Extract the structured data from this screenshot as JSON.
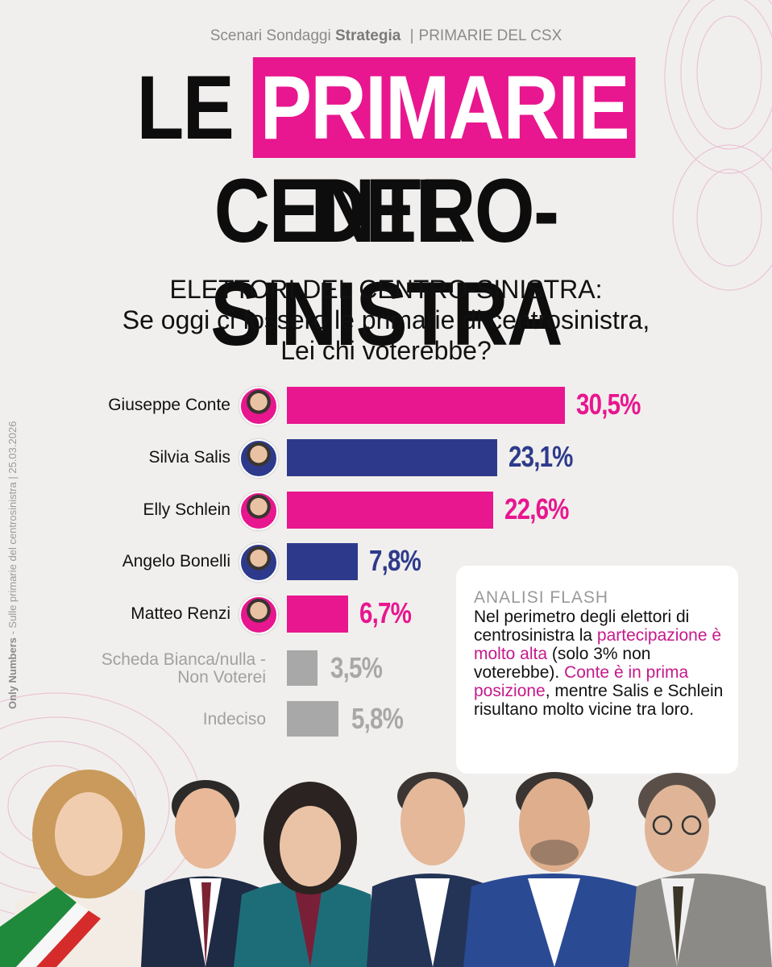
{
  "header": {
    "brand_plain": "Scenari Sondaggi",
    "brand_bold": "Strategia",
    "separator": "|",
    "topic": "PRIMARIE DEL CSX"
  },
  "title": {
    "line1_pre": "LE",
    "line1_highlight": "PRIMARIE",
    "line1_post": "DEL",
    "line2": "CENTRO-SINISTRA"
  },
  "subtitle": {
    "line1": "ELETTORI DEL CENTRO-SINISTRA:",
    "line2": "Se oggi ci fossero le primarie di centrosinistra,",
    "line3": "Lei chi voterebbe?"
  },
  "side_note": {
    "bold": "Only Numbers",
    "rest": " - Sulle primarie del centrosinistra | 25.03.2026"
  },
  "chart_data": {
    "type": "bar",
    "orientation": "horizontal",
    "categories": [
      "Giuseppe Conte",
      "Silvia Salis",
      "Elly Schlein",
      "Angelo Bonelli",
      "Matteo Renzi",
      "Scheda Bianca/nulla - Non Voterei",
      "Indeciso"
    ],
    "label_lines": [
      [
        "Giuseppe Conte"
      ],
      [
        "Silvia Salis"
      ],
      [
        "Elly Schlein"
      ],
      [
        "Angelo Bonelli"
      ],
      [
        "Matteo Renzi"
      ],
      [
        "Scheda Bianca/nulla -",
        "Non Voterei"
      ],
      [
        "Indeciso"
      ]
    ],
    "values": [
      30.5,
      23.1,
      22.6,
      7.8,
      6.7,
      3.5,
      5.8
    ],
    "value_labels": [
      "30,5%",
      "23,1%",
      "22,6%",
      "7,8%",
      "6,7%",
      "3,5%",
      "5,8%"
    ],
    "colors": [
      "#e8168f",
      "#2d3a8c",
      "#e8168f",
      "#2d3a8c",
      "#e8168f",
      "#a8a8a8",
      "#a8a8a8"
    ],
    "value_colors": [
      "#e8168f",
      "#2d3a8c",
      "#e8168f",
      "#2d3a8c",
      "#e8168f",
      "#a8a8a8",
      "#a8a8a8"
    ],
    "has_avatar": [
      true,
      true,
      true,
      true,
      true,
      false,
      false
    ],
    "gray_label": [
      false,
      false,
      false,
      false,
      false,
      true,
      true
    ],
    "unit": "%",
    "xlim": [
      0,
      30.5
    ]
  },
  "analysis": {
    "heading": "ANALISI FLASH",
    "t1": "Nel perimetro degli elettori di centrosinistra la ",
    "h1": "partecipazione è molto alta",
    "t2": " (solo 3% non voterebbe). ",
    "h2": "Conte è in prima posizione",
    "t3": ", mentre Salis e Schlein risultano molto vicine tra loro."
  },
  "colors": {
    "accent": "#e8168f",
    "navy": "#2d3a8c",
    "gray": "#a8a8a8",
    "background": "#f1efed"
  }
}
